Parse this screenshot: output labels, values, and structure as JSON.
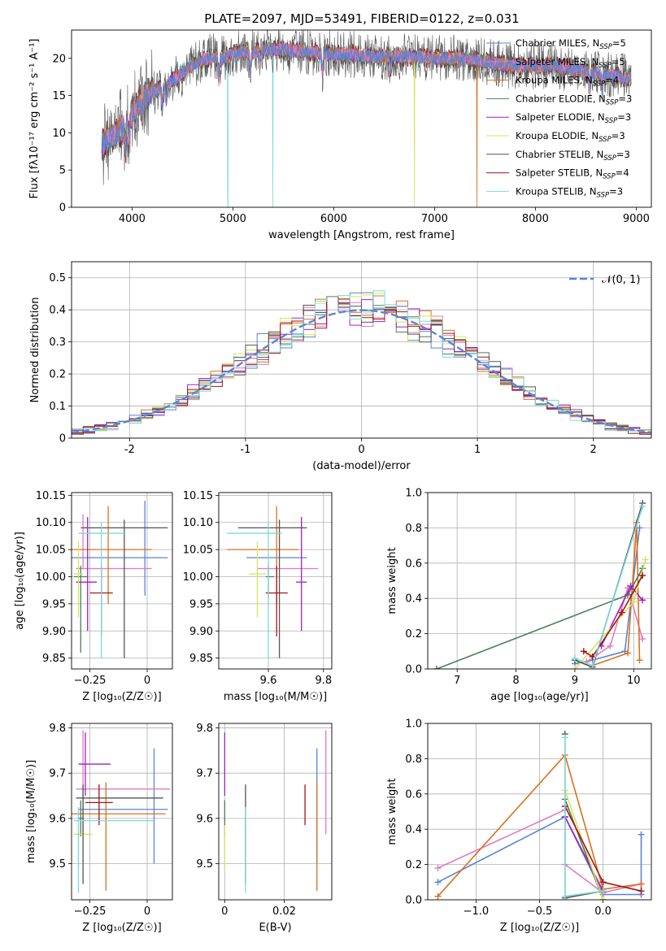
{
  "figure": {
    "title": "PLATE=2097, MJD=53491, FIBERID=0122, z=0.031"
  },
  "colors": {
    "Chabrier MILES": "#5b84d6",
    "Salpeter MILES": "#e07cbf",
    "Kroupa MILES": "#d9711f",
    "Chabrier ELODIE": "#4d7f5b",
    "Salpeter ELODIE": "#a320bf",
    "Kroupa ELODIE": "#d6e35a",
    "Chabrier STELIB": "#555555",
    "Salpeter STELIB": "#a31515",
    "Kroupa STELIB": "#7fd9dc"
  },
  "chart_data": [
    {
      "id": "spectrum",
      "type": "line",
      "xlabel": "wavelength [Angstrom, rest frame]",
      "ylabel": "Flux [fλ10⁻¹⁷ erg cm⁻² s⁻¹ A⁻¹]",
      "xlim": [
        3400,
        9150
      ],
      "ylim": [
        0,
        23.8
      ],
      "xticks": [
        4000,
        5000,
        6000,
        7000,
        8000,
        9000
      ],
      "yticks": [
        0,
        5,
        10,
        15,
        20
      ],
      "legend_position": "upper-right",
      "legend": [
        "Chabrier MILES, N_SSP=5",
        "Salpeter MILES, N_SSP=5",
        "Kroupa MILES, N_SSP=4",
        "Chabrier ELODIE, N_SSP=3",
        "Salpeter ELODIE, N_SSP=3",
        "Kroupa ELODIE, N_SSP=3",
        "Chabrier STELIB, N_SSP=3",
        "Salpeter STELIB, N_SSP=4",
        "Kroupa STELIB, N_SSP=3"
      ],
      "continuum": {
        "x": [
          3700,
          3800,
          3900,
          4000,
          4100,
          4200,
          4300,
          4400,
          4500,
          4600,
          4700,
          4800,
          4900,
          5000,
          5200,
          5400,
          5600,
          5800,
          6000,
          6200,
          6400,
          6600,
          6800,
          7000,
          7200,
          7400,
          7600,
          7800,
          8000,
          8200,
          8400,
          8600,
          8800,
          8950
        ],
        "y": [
          8.5,
          9.5,
          10.5,
          12.5,
          14.5,
          15.5,
          16.0,
          17.0,
          18.0,
          19.2,
          19.8,
          20.2,
          20.0,
          20.6,
          20.9,
          21.2,
          21.0,
          20.8,
          20.5,
          20.5,
          20.2,
          20.3,
          20.2,
          20.0,
          20.0,
          19.8,
          19.3,
          19.0,
          19.0,
          19.0,
          18.5,
          18.0,
          17.6,
          17.3
        ]
      },
      "features": [
        {
          "x": 3934,
          "depth": 3.0
        },
        {
          "x": 3969,
          "depth": 2.5
        },
        {
          "x": 4102,
          "depth": 2.0
        },
        {
          "x": 4300,
          "depth": 2.5
        },
        {
          "x": 4340,
          "depth": 2.0
        },
        {
          "x": 4861,
          "depth": 3.0
        },
        {
          "x": 5175,
          "depth": 3.0
        },
        {
          "x": 5270,
          "depth": 1.5
        },
        {
          "x": 5890,
          "depth": 2.5
        },
        {
          "x": 6563,
          "depth": 2.0
        },
        {
          "x": 8542,
          "depth": 2.0
        },
        {
          "x": 8662,
          "depth": 2.0
        }
      ],
      "dips": [
        {
          "series": "Kroupa STELIB",
          "x": 4950,
          "y": 0
        },
        {
          "series": "Kroupa STELIB",
          "x": 5395,
          "y": 0
        },
        {
          "series": "Kroupa ELODIE",
          "x": 6800,
          "y": 0
        },
        {
          "series": "Kroupa MILES",
          "x": 7420,
          "y": 0
        }
      ]
    },
    {
      "id": "residuals",
      "type": "bar",
      "xlabel": "(data-model)/error",
      "ylabel": "Normed distribution",
      "xlim": [
        -2.5,
        2.5
      ],
      "ylim": [
        0,
        0.55
      ],
      "xticks": [
        -2,
        -1,
        0,
        1,
        2
      ],
      "yticks": [
        0.0,
        0.1,
        0.2,
        0.3,
        0.4,
        0.5
      ],
      "grid": true,
      "bin_width": 0.1,
      "bin_start": -2.5,
      "bins": 50,
      "gaussian_label": "𝒩(0, 1)",
      "legend_position": "upper-right"
    },
    {
      "id": "age-vs-z",
      "type": "scatter",
      "xlabel": "Z [log₁₀(Z/Z☉)]",
      "ylabel": "age  [log₁₀(age/yr)]",
      "xlim": [
        -0.33,
        0.11
      ],
      "ylim": [
        9.83,
        10.155
      ],
      "xticks": [
        -0.25,
        0.0
      ],
      "ytick_labels": [
        "9.85",
        "9.90",
        "9.95",
        "10.00",
        "10.05",
        "10.10",
        "10.15"
      ],
      "grid": true,
      "points": [
        {
          "series": "Chabrier MILES",
          "x": -0.01,
          "xerr": [
            0.33,
            0.1
          ],
          "y": 10.035,
          "yerr": [
            0.07,
            0.105
          ]
        },
        {
          "series": "Salpeter MILES",
          "x": -0.28,
          "xerr": [
            0.03,
            0.3
          ],
          "y": 10.015,
          "yerr": [
            0.0,
            0.1
          ]
        },
        {
          "series": "Kroupa MILES",
          "x": -0.17,
          "xerr": [
            0.16,
            0.19
          ],
          "y": 10.05,
          "yerr": [
            0.1,
            0.08
          ]
        },
        {
          "series": "Chabrier ELODIE",
          "x": -0.29,
          "xerr": [
            0.03,
            0.03
          ],
          "y": 10.0,
          "yerr": [
            0.14,
            0.02
          ]
        },
        {
          "series": "Salpeter ELODIE",
          "x": -0.26,
          "xerr": [
            0.05,
            0.04
          ],
          "y": 9.99,
          "yerr": [
            0.09,
            0.12
          ]
        },
        {
          "series": "Kroupa ELODIE",
          "x": -0.3,
          "xerr": [
            0.02,
            0.02
          ],
          "y": 10.005,
          "yerr": [
            0.08,
            0.06
          ]
        },
        {
          "series": "Chabrier STELIB",
          "x": -0.1,
          "xerr": [
            0.19,
            0.19
          ],
          "y": 10.09,
          "yerr": [
            0.24,
            0.015
          ]
        },
        {
          "series": "Salpeter STELIB",
          "x": -0.2,
          "xerr": [
            0.05,
            0.05
          ],
          "y": 9.97,
          "yerr": [
            0.08,
            0.05
          ]
        },
        {
          "series": "Kroupa STELIB",
          "x": -0.2,
          "xerr": [
            0.1,
            0.1
          ],
          "y": 10.08,
          "yerr": [
            0.23,
            0.02
          ]
        }
      ]
    },
    {
      "id": "age-vs-mass",
      "type": "scatter",
      "xlabel": "mass [log₁₀(M/M☉)]",
      "xlim": [
        9.42,
        9.83
      ],
      "ylim": [
        9.83,
        10.155
      ],
      "xticks": [
        9.6,
        9.8
      ],
      "ytick_labels": [
        "9.85",
        "9.90",
        "9.95",
        "10.00",
        "10.05",
        "10.10",
        "10.15"
      ],
      "grid": true,
      "points": [
        {
          "series": "Chabrier MILES",
          "x": 9.62,
          "xerr": [
            0.1,
            0.12
          ],
          "y": 10.035,
          "yerr": [
            0.0,
            0.0
          ]
        },
        {
          "series": "Salpeter MILES",
          "x": 9.66,
          "xerr": [
            0.1,
            0.12
          ],
          "y": 10.015,
          "yerr": [
            0.0,
            0.0
          ]
        },
        {
          "series": "Kroupa MILES",
          "x": 9.63,
          "xerr": [
            0.18,
            0.08
          ],
          "y": 10.05,
          "yerr": [
            0.1,
            0.08
          ]
        },
        {
          "series": "Chabrier ELODIE",
          "x": 9.6,
          "xerr": [
            0.01,
            0.02
          ],
          "y": 10.0,
          "yerr": [
            0.04,
            0.02
          ]
        },
        {
          "series": "Salpeter ELODIE",
          "x": 9.72,
          "xerr": [
            0.02,
            0.02
          ],
          "y": 9.99,
          "yerr": [
            0.09,
            0.12
          ]
        },
        {
          "series": "Kroupa ELODIE",
          "x": 9.56,
          "xerr": [
            0.03,
            0.03
          ],
          "y": 10.005,
          "yerr": [
            0.08,
            0.06
          ]
        },
        {
          "series": "Chabrier STELIB",
          "x": 9.64,
          "xerr": [
            0.15,
            0.1
          ],
          "y": 10.09,
          "yerr": [
            0.24,
            0.015
          ]
        },
        {
          "series": "Salpeter STELIB",
          "x": 9.63,
          "xerr": [
            0.04,
            0.04
          ],
          "y": 9.97,
          "yerr": [
            0.08,
            0.05
          ]
        },
        {
          "series": "Kroupa STELIB",
          "x": 9.6,
          "xerr": [
            0.15,
            0.05
          ],
          "y": 10.08,
          "yerr": [
            0.23,
            0.02
          ]
        }
      ]
    },
    {
      "id": "massweight-vs-age",
      "type": "line",
      "xlabel": "age  [log₁₀(age/yr)]",
      "ylabel": "mass weight",
      "xlim": [
        6.5,
        10.3
      ],
      "ylim": [
        0,
        1.0
      ],
      "xticks": [
        7,
        8,
        9,
        10
      ],
      "ytick_labels": [
        "0.0",
        "0.2",
        "0.4",
        "0.6",
        "0.8",
        "1.0"
      ],
      "grid": true,
      "series": [
        {
          "name": "Chabrier MILES",
          "x": [
            9.0,
            9.3,
            9.85,
            10.1
          ],
          "y": [
            0.03,
            0.05,
            0.1,
            0.8
          ]
        },
        {
          "name": "Salpeter MILES",
          "x": [
            9.2,
            9.6,
            9.9,
            10.15
          ],
          "y": [
            0.04,
            0.13,
            0.46,
            0.17
          ]
        },
        {
          "name": "Kroupa MILES",
          "x": [
            9.3,
            9.9,
            10.05,
            10.1
          ],
          "y": [
            0.02,
            0.09,
            0.83,
            0.05
          ]
        },
        {
          "name": "Chabrier ELODIE",
          "x": [
            6.65,
            9.9,
            10.15
          ],
          "y": [
            0.0,
            0.42,
            0.57
          ]
        },
        {
          "name": "Salpeter ELODIE",
          "x": [
            9.45,
            9.95,
            10.15
          ],
          "y": [
            0.13,
            0.47,
            0.39
          ]
        },
        {
          "name": "Kroupa ELODIE",
          "x": [
            9.0,
            10.0,
            10.2
          ],
          "y": [
            0.0,
            0.38,
            0.62
          ]
        },
        {
          "name": "Chabrier STELIB",
          "x": [
            9.0,
            9.3,
            10.15
          ],
          "y": [
            0.05,
            0.01,
            0.94
          ]
        },
        {
          "name": "Salpeter STELIB",
          "x": [
            9.15,
            9.3,
            9.8,
            10.15
          ],
          "y": [
            0.1,
            0.07,
            0.32,
            0.53
          ]
        },
        {
          "name": "Kroupa STELIB",
          "x": [
            9.0,
            9.3,
            10.15
          ],
          "y": [
            0.06,
            0.02,
            0.92
          ]
        }
      ]
    },
    {
      "id": "mass-vs-z",
      "type": "scatter",
      "xlabel": "Z [log₁₀(Z/Z☉)]",
      "ylabel": "mass [log₁₀(M/M☉)]",
      "xlim": [
        -0.33,
        0.11
      ],
      "ylim": [
        9.42,
        9.81
      ],
      "xticks": [
        -0.25,
        0.0
      ],
      "ytick_labels": [
        "9.5",
        "9.6",
        "9.7",
        "9.8"
      ],
      "grid": true,
      "points": [
        {
          "series": "Chabrier MILES",
          "x": 0.03,
          "xerr": [
            0.33,
            0.06
          ],
          "y": 9.62,
          "yerr": [
            0.12,
            0.135
          ]
        },
        {
          "series": "Salpeter MILES",
          "x": -0.28,
          "xerr": [
            0.03,
            0.38
          ],
          "y": 9.665,
          "yerr": [
            0.1,
            0.13
          ]
        },
        {
          "series": "Kroupa MILES",
          "x": -0.18,
          "xerr": [
            0.15,
            0.26
          ],
          "y": 9.61,
          "yerr": [
            0.17,
            0.07
          ]
        },
        {
          "series": "Chabrier ELODIE",
          "x": -0.29,
          "xerr": [
            0.01,
            0.01
          ],
          "y": 9.6,
          "yerr": [
            0.04,
            0.04
          ]
        },
        {
          "series": "Salpeter ELODIE",
          "x": -0.27,
          "xerr": [
            0.03,
            0.11
          ],
          "y": 9.72,
          "yerr": [
            0.07,
            0.07
          ]
        },
        {
          "series": "Kroupa ELODIE",
          "x": -0.3,
          "xerr": [
            0.02,
            0.06
          ],
          "y": 9.565,
          "yerr": [
            0.08,
            0.02
          ]
        },
        {
          "series": "Chabrier STELIB",
          "x": -0.28,
          "xerr": [
            0.03,
            0.35
          ],
          "y": 9.645,
          "yerr": [
            0.19,
            0.03
          ]
        },
        {
          "series": "Salpeter STELIB",
          "x": -0.21,
          "xerr": [
            0.06,
            0.06
          ],
          "y": 9.635,
          "yerr": [
            0.05,
            0.04
          ]
        },
        {
          "series": "Kroupa STELIB",
          "x": -0.3,
          "xerr": [
            0.02,
            0.33
          ],
          "y": 9.595,
          "yerr": [
            0.16,
            0.03
          ]
        }
      ]
    },
    {
      "id": "mass-vs-ebv",
      "type": "scatter",
      "xlabel": "E(B-V)",
      "xlim": [
        -0.002,
        0.036
      ],
      "ylim": [
        9.42,
        9.81
      ],
      "xticks": [
        0.0,
        0.02
      ],
      "ytick_labels": [
        "9.5",
        "9.6",
        "9.7",
        "9.8"
      ],
      "grid": true,
      "points": [
        {
          "series": "Chabrier MILES",
          "x": 0.031,
          "y": 9.62,
          "yerr": [
            0.12,
            0.135
          ]
        },
        {
          "series": "Salpeter MILES",
          "x": 0.034,
          "y": 9.665,
          "yerr": [
            0.1,
            0.13
          ]
        },
        {
          "series": "Kroupa MILES",
          "x": 0.031,
          "y": 9.61,
          "yerr": [
            0.17,
            0.07
          ]
        },
        {
          "series": "Chabrier ELODIE",
          "x": 0.0,
          "y": 9.6,
          "yerr": [
            0.04,
            0.04
          ]
        },
        {
          "series": "Salpeter ELODIE",
          "x": 0.0,
          "y": 9.72,
          "yerr": [
            0.07,
            0.07
          ]
        },
        {
          "series": "Kroupa ELODIE",
          "x": 0.0,
          "y": 9.565,
          "yerr": [
            0.08,
            0.02
          ]
        },
        {
          "series": "Chabrier STELIB",
          "x": 0.007,
          "y": 9.645,
          "yerr": [
            0.19,
            0.03
          ]
        },
        {
          "series": "Salpeter STELIB",
          "x": 0.027,
          "y": 9.635,
          "yerr": [
            0.05,
            0.04
          ]
        },
        {
          "series": "Kroupa STELIB",
          "x": 0.007,
          "y": 9.595,
          "yerr": [
            0.16,
            0.03
          ]
        }
      ]
    },
    {
      "id": "massweight-vs-z",
      "type": "line",
      "xlabel": "Z [log₁₀(Z/Z☉)]",
      "ylabel": "mass weight",
      "xlim": [
        -1.38,
        0.38
      ],
      "ylim": [
        0,
        1.0
      ],
      "xticks": [
        -1.0,
        -0.5,
        0.0
      ],
      "xtick_labels": [
        "−1.0",
        "−0.5",
        "0.0"
      ],
      "ytick_labels": [
        "0.0",
        "0.2",
        "0.4",
        "0.6",
        "0.8",
        "1.0"
      ],
      "grid": true,
      "series": [
        {
          "name": "Chabrier MILES",
          "x": [
            -1.3,
            -0.3,
            0.0,
            0.3,
            0.3
          ],
          "y": [
            0.1,
            0.47,
            0.03,
            0.03,
            0.37
          ]
        },
        {
          "name": "Salpeter MILES",
          "x": [
            -1.3,
            -0.3,
            -0.3,
            0.0,
            0.3
          ],
          "y": [
            0.18,
            0.51,
            0.2,
            0.04,
            0.09
          ]
        },
        {
          "name": "Kroupa MILES",
          "x": [
            -1.3,
            -0.3,
            0.0,
            0.3
          ],
          "y": [
            0.02,
            0.82,
            0.06,
            0.09
          ]
        },
        {
          "name": "Chabrier ELODIE",
          "x": [
            -0.3,
            0.0
          ],
          "y": [
            0.57,
            0.0
          ]
        },
        {
          "name": "Salpeter ELODIE",
          "x": [
            -0.3,
            0.0
          ],
          "y": [
            0.47,
            0.05
          ]
        },
        {
          "name": "Kroupa ELODIE",
          "x": [
            -0.3,
            0.0
          ],
          "y": [
            0.62,
            0.0
          ]
        },
        {
          "name": "Chabrier STELIB",
          "x": [
            -0.3,
            -0.3,
            0.0
          ],
          "y": [
            0.94,
            0.01,
            0.05
          ]
        },
        {
          "name": "Salpeter STELIB",
          "x": [
            -0.3,
            0.0,
            0.3
          ],
          "y": [
            0.53,
            0.1,
            0.05
          ]
        },
        {
          "name": "Kroupa STELIB",
          "x": [
            -0.3,
            -0.3,
            0.0
          ],
          "y": [
            0.92,
            0.02,
            0.05
          ]
        }
      ]
    }
  ]
}
